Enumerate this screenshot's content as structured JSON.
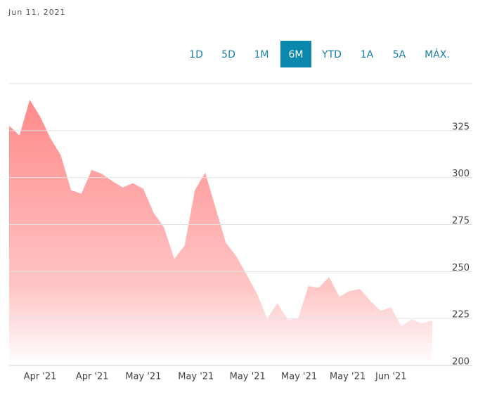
{
  "header": {
    "date": "Jun 11, 2021",
    "ranges": [
      "1D",
      "5D",
      "1M",
      "6M",
      "YTD",
      "1A",
      "5A",
      "MÁX."
    ],
    "selected_range": "6M"
  },
  "chart_data": {
    "type": "area",
    "color": "#ff8a8a",
    "values": [
      327.6,
      322.4,
      341.4,
      332.5,
      320.9,
      311.9,
      293.3,
      291.4,
      304.1,
      301.9,
      298.1,
      294.8,
      297,
      294,
      281.3,
      273.5,
      256.7,
      263.8,
      293.3,
      302.6,
      284,
      265.3,
      258.2,
      248.5,
      238.4,
      225,
      233.2,
      224.3,
      225,
      242.2,
      241.4,
      247,
      236.6,
      239.6,
      240.7,
      234.3,
      229.1,
      231,
      220.9,
      224.6,
      222.4,
      223.9
    ],
    "xlim": [
      0,
      41
    ],
    "xticks": [
      {
        "value": 3,
        "label": "Apr '21"
      },
      {
        "value": 8.05,
        "label": "Apr '21"
      },
      {
        "value": 13,
        "label": "May '21"
      },
      {
        "value": 18.1,
        "label": "May '21"
      },
      {
        "value": 23.1,
        "label": "May '21"
      },
      {
        "value": 28.1,
        "label": "May '21"
      },
      {
        "value": 32.8,
        "label": "May '21"
      },
      {
        "value": 37,
        "label": "Jun '21"
      }
    ],
    "ylim": [
      200,
      350
    ],
    "yticks": [
      200,
      225,
      250,
      275,
      300,
      325
    ],
    "grid": true
  }
}
